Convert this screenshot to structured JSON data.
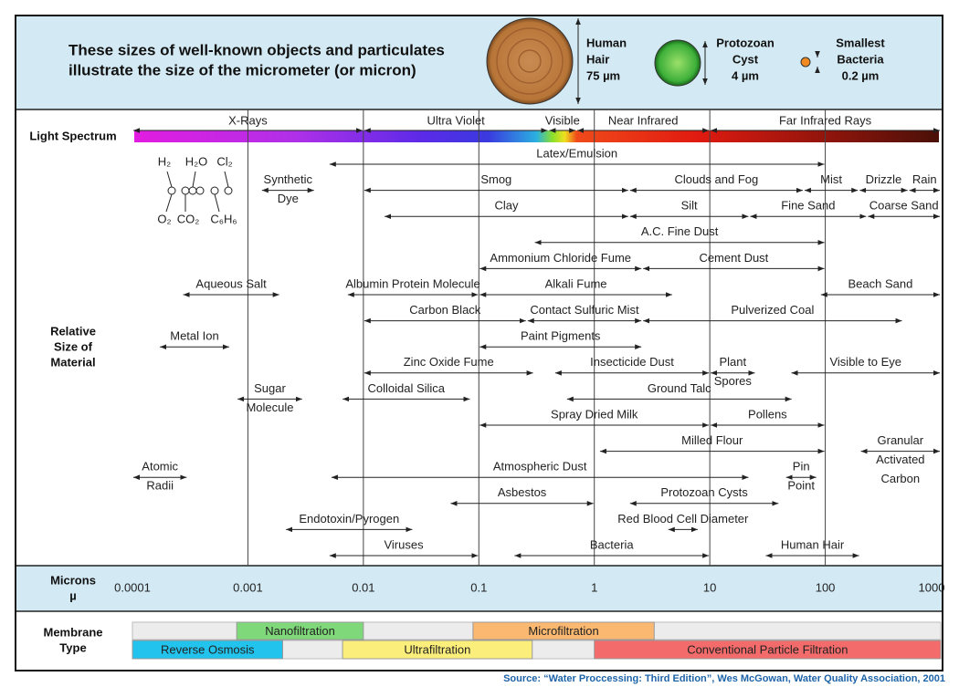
{
  "header": {
    "title_lines": [
      "These sizes of well-known objects and particulates",
      "illustrate the size of the micrometer (or micron)"
    ],
    "objects": [
      {
        "name": [
          "Human",
          "Hair"
        ],
        "size": "75 µm"
      },
      {
        "name": [
          "Protozoan",
          "Cyst"
        ],
        "size": "4 µm"
      },
      {
        "name": [
          "Smallest",
          "Bacteria"
        ],
        "size": "0.2 µm"
      }
    ]
  },
  "row_labels": {
    "spectrum": [
      "Light Spectrum"
    ],
    "material": [
      "Relative",
      "Size of",
      "Material"
    ],
    "microns": [
      "Microns",
      "µ"
    ],
    "membrane": [
      "Membrane",
      "Type"
    ]
  },
  "molecules": {
    "top": [
      "H₂",
      "H₂O",
      "Cl₂"
    ],
    "bottom": [
      "O₂",
      "CO₂",
      "C₆H₆"
    ]
  },
  "source": "Source: “Water Proccessing: Third Edition”, Wes McGowan, Water Quality Association, 2001",
  "chart_data": {
    "type": "range",
    "log": true,
    "grid": true,
    "xlim": [
      0.0001,
      1000
    ],
    "xticks": [
      0.0001,
      0.001,
      0.01,
      0.1,
      1,
      10,
      100,
      1000
    ],
    "spectrum": [
      {
        "label": "X-Rays",
        "start": 0.0001,
        "end": 0.01
      },
      {
        "label": "Ultra Violet",
        "start": 0.01,
        "end": 0.4
      },
      {
        "label": "Visible",
        "start": 0.4,
        "end": 0.7
      },
      {
        "label": "Near Infrared",
        "start": 0.7,
        "end": 10
      },
      {
        "label": "Far Infrared Rays",
        "start": 10,
        "end": 1000
      }
    ],
    "rows": [
      [
        {
          "label": [
            "Latex/Emulsion"
          ],
          "start": 0.005,
          "end": 100
        }
      ],
      [
        {
          "label": [
            "Synthetic",
            "Dye"
          ],
          "start": 0.0013,
          "end": 0.0038
        },
        {
          "label": [
            "Smog"
          ],
          "start": 0.01,
          "end": 2
        },
        {
          "label": [
            "Clouds and Fog"
          ],
          "start": 2,
          "end": 65
        },
        {
          "label": [
            "Mist"
          ],
          "start": 65,
          "end": 195
        },
        {
          "label": [
            "Drizzle"
          ],
          "start": 195,
          "end": 525
        },
        {
          "label": [
            "Rain"
          ],
          "start": 525,
          "end": 1000
        }
      ],
      [
        {
          "label": [
            "Clay"
          ],
          "start": 0.015,
          "end": 2
        },
        {
          "label": [
            "Silt"
          ],
          "start": 2,
          "end": 22
        },
        {
          "label": [
            "Fine Sand"
          ],
          "start": 22,
          "end": 230
        },
        {
          "label": [
            "Coarse Sand"
          ],
          "start": 230,
          "end": 1000
        }
      ],
      [
        {
          "label": [
            "A.C. Fine Dust"
          ],
          "start": 0.3,
          "end": 100
        }
      ],
      [
        {
          "label": [
            "Ammonium Chloride Fume"
          ],
          "start": 0.1,
          "end": 2.6
        },
        {
          "label": [
            "Cement Dust"
          ],
          "start": 2.6,
          "end": 100
        }
      ],
      [
        {
          "label": [
            "Aqueous Salt"
          ],
          "start": 0.00027,
          "end": 0.0019
        },
        {
          "label": [
            "Albumin Protein Molecule"
          ],
          "start": 0.0072,
          "end": 0.1
        },
        {
          "label": [
            "Alkali Fume"
          ],
          "start": 0.1,
          "end": 4.8
        },
        {
          "label": [
            "Beach Sand"
          ],
          "start": 90,
          "end": 1000
        }
      ],
      [
        {
          "label": [
            "Carbon Black"
          ],
          "start": 0.01,
          "end": 0.26
        },
        {
          "label": [
            "Contact Sulfuric Mist"
          ],
          "start": 0.26,
          "end": 2.6
        },
        {
          "label": [
            "Pulverized Coal"
          ],
          "start": 2.6,
          "end": 470
        }
      ],
      [
        {
          "label": [
            "Metal Ion"
          ],
          "start": 0.00017,
          "end": 0.0007
        },
        {
          "label": [
            "Paint Pigments"
          ],
          "start": 0.1,
          "end": 2.6
        }
      ],
      [
        {
          "label": [
            "Zinc Oxide Fume"
          ],
          "start": 0.01,
          "end": 0.3
        },
        {
          "label": [
            "Insecticide Dust"
          ],
          "start": 0.45,
          "end": 10
        },
        {
          "label": [
            "Plant",
            "Spores"
          ],
          "start": 10,
          "end": 25
        },
        {
          "label": [
            "Visible to Eye"
          ],
          "start": 50,
          "end": 1000
        }
      ],
      [
        {
          "label": [
            "Sugar",
            "Molecule"
          ],
          "start": 0.0008,
          "end": 0.003
        },
        {
          "label": [
            "Colloidal Silica"
          ],
          "start": 0.0065,
          "end": 0.085
        },
        {
          "label": [
            "Ground Talc"
          ],
          "start": 0.57,
          "end": 52
        }
      ],
      [
        {
          "label": [
            "Spray Dried Milk"
          ],
          "start": 0.1,
          "end": 10
        },
        {
          "label": [
            "Pollens"
          ],
          "start": 10,
          "end": 100
        }
      ],
      [
        {
          "label": [
            "Milled Flour"
          ],
          "start": 1.1,
          "end": 100
        },
        {
          "label": [
            "Granular",
            "Activated",
            "Carbon"
          ],
          "start": 200,
          "end": 1000
        }
      ],
      [
        {
          "label": [
            "Atomic",
            "Radii"
          ],
          "start": 0.0001,
          "end": 0.0003
        },
        {
          "label": [
            "Atmospheric Dust"
          ],
          "start": 0.0052,
          "end": 22
        },
        {
          "label": [
            "Pin",
            "Point"
          ],
          "start": 45,
          "end": 85
        }
      ],
      [
        {
          "label": [
            "Asbestos"
          ],
          "start": 0.056,
          "end": 1
        },
        {
          "label": [
            "Protozoan Cysts"
          ],
          "start": 2,
          "end": 40
        }
      ],
      [
        {
          "label": [
            "Endotoxin/Pyrogen"
          ],
          "start": 0.0021,
          "end": 0.027
        },
        {
          "label": [
            "Red Blood Cell Diameter"
          ],
          "start": 4.3,
          "end": 8
        }
      ],
      [
        {
          "label": [
            "Viruses"
          ],
          "start": 0.005,
          "end": 0.1
        },
        {
          "label": [
            "Bacteria"
          ],
          "start": 0.2,
          "end": 10
        },
        {
          "label": [
            "Human Hair"
          ],
          "start": 30,
          "end": 200
        }
      ]
    ],
    "membrane": [
      {
        "label": "Nanofiltration",
        "start": 0.0008,
        "end": 0.01,
        "row": 0,
        "color": "#7fd97a"
      },
      {
        "label": "Microfiltration",
        "start": 0.089,
        "end": 3.3,
        "row": 0,
        "color": "#fbb870"
      },
      {
        "label": "Reverse Osmosis",
        "start": 0.0001,
        "end": 0.002,
        "row": 1,
        "color": "#22c3ec"
      },
      {
        "label": "Ultrafiltration",
        "start": 0.0066,
        "end": 0.29,
        "row": 1,
        "color": "#fbee7a"
      },
      {
        "label": "Conventional Particle Filtration",
        "start": 1,
        "end": 1000,
        "row": 1,
        "color": "#f46b6b"
      }
    ]
  }
}
